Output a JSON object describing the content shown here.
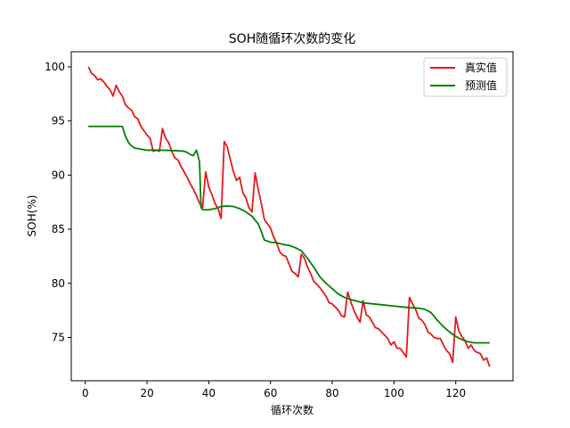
{
  "chart_data": {
    "type": "line",
    "title": "SOH随循环次数的变化",
    "xlabel": "循环次数",
    "ylabel": "SOH(%)",
    "xlim": [
      -4.55,
      138.55
    ],
    "ylim": [
      71.0,
      101.4
    ],
    "xticks": [
      0,
      20,
      40,
      60,
      80,
      100,
      120
    ],
    "yticks": [
      75,
      80,
      85,
      90,
      95,
      100
    ],
    "grid": false,
    "legend_position": "top-right",
    "series": [
      {
        "name": "真实值",
        "color": "#e41a1c",
        "points": [
          [
            1,
            100.0
          ],
          [
            2,
            99.4
          ],
          [
            3,
            99.2
          ],
          [
            4,
            98.8
          ],
          [
            5,
            98.9
          ],
          [
            6,
            98.6
          ],
          [
            7,
            98.2
          ],
          [
            8,
            97.9
          ],
          [
            9,
            97.3
          ],
          [
            10,
            98.3
          ],
          [
            11,
            97.7
          ],
          [
            12,
            97.3
          ],
          [
            13,
            96.5
          ],
          [
            14,
            96.2
          ],
          [
            15,
            96.0
          ],
          [
            16,
            95.4
          ],
          [
            17,
            95.2
          ],
          [
            18,
            94.5
          ],
          [
            19,
            94.1
          ],
          [
            20,
            93.7
          ],
          [
            21,
            93.4
          ],
          [
            22,
            92.2
          ],
          [
            23,
            92.3
          ],
          [
            24,
            92.2
          ],
          [
            25,
            94.3
          ],
          [
            26,
            93.4
          ],
          [
            27,
            93.0
          ],
          [
            28,
            92.2
          ],
          [
            29,
            91.6
          ],
          [
            30,
            91.4
          ],
          [
            31,
            90.8
          ],
          [
            32,
            90.3
          ],
          [
            33,
            89.8
          ],
          [
            34,
            89.2
          ],
          [
            35,
            88.7
          ],
          [
            36,
            88.1
          ],
          [
            37,
            87.4
          ],
          [
            38,
            87.0
          ],
          [
            39,
            90.3
          ],
          [
            40,
            88.9
          ],
          [
            41,
            88.2
          ],
          [
            42,
            87.4
          ],
          [
            43,
            86.9
          ],
          [
            44,
            86.0
          ],
          [
            45,
            93.1
          ],
          [
            46,
            92.6
          ],
          [
            47,
            91.4
          ],
          [
            48,
            90.3
          ],
          [
            49,
            89.5
          ],
          [
            50,
            89.8
          ],
          [
            51,
            88.4
          ],
          [
            52,
            87.9
          ],
          [
            53,
            87.0
          ],
          [
            54,
            86.6
          ],
          [
            55,
            90.2
          ],
          [
            56,
            88.7
          ],
          [
            57,
            87.4
          ],
          [
            58,
            85.9
          ],
          [
            59,
            85.5
          ],
          [
            60,
            85.1
          ],
          [
            61,
            84.3
          ],
          [
            62,
            83.7
          ],
          [
            63,
            82.9
          ],
          [
            64,
            82.6
          ],
          [
            65,
            82.5
          ],
          [
            66,
            81.8
          ],
          [
            67,
            81.1
          ],
          [
            68,
            80.9
          ],
          [
            69,
            80.6
          ],
          [
            70,
            82.7
          ],
          [
            71,
            82.3
          ],
          [
            72,
            81.5
          ],
          [
            73,
            80.9
          ],
          [
            74,
            80.2
          ],
          [
            75,
            79.9
          ],
          [
            76,
            79.6
          ],
          [
            77,
            79.2
          ],
          [
            78,
            78.8
          ],
          [
            79,
            78.2
          ],
          [
            80,
            78.1
          ],
          [
            81,
            77.8
          ],
          [
            82,
            77.5
          ],
          [
            83,
            77.0
          ],
          [
            84,
            76.9
          ],
          [
            85,
            79.2
          ],
          [
            86,
            78.3
          ],
          [
            87,
            77.5
          ],
          [
            88,
            76.9
          ],
          [
            89,
            76.4
          ],
          [
            90,
            78.4
          ],
          [
            91,
            77.1
          ],
          [
            92,
            76.9
          ],
          [
            93,
            76.4
          ],
          [
            94,
            75.9
          ],
          [
            95,
            75.8
          ],
          [
            96,
            75.5
          ],
          [
            97,
            75.2
          ],
          [
            98,
            74.9
          ],
          [
            99,
            74.3
          ],
          [
            100,
            74.6
          ],
          [
            101,
            74.0
          ],
          [
            102,
            74.0
          ],
          [
            103,
            73.6
          ],
          [
            104,
            73.2
          ],
          [
            105,
            78.7
          ],
          [
            106,
            78.1
          ],
          [
            107,
            77.6
          ],
          [
            108,
            76.8
          ],
          [
            109,
            76.6
          ],
          [
            110,
            76.2
          ],
          [
            111,
            75.5
          ],
          [
            112,
            75.3
          ],
          [
            113,
            75.0
          ],
          [
            114,
            74.9
          ],
          [
            115,
            74.9
          ],
          [
            116,
            74.3
          ],
          [
            117,
            73.8
          ],
          [
            118,
            73.5
          ],
          [
            119,
            72.7
          ],
          [
            120,
            76.9
          ],
          [
            121,
            75.6
          ],
          [
            122,
            75.1
          ],
          [
            123,
            74.7
          ],
          [
            124,
            74.0
          ],
          [
            125,
            74.3
          ],
          [
            126,
            73.8
          ],
          [
            127,
            73.6
          ],
          [
            128,
            73.5
          ],
          [
            129,
            72.9
          ],
          [
            130,
            73.1
          ],
          [
            131,
            72.3
          ]
        ]
      },
      {
        "name": "预测值",
        "color": "#008000",
        "points": [
          [
            1,
            94.5
          ],
          [
            5,
            94.5
          ],
          [
            10,
            94.5
          ],
          [
            12,
            94.5
          ],
          [
            13,
            93.6
          ],
          [
            14,
            93.0
          ],
          [
            15,
            92.7
          ],
          [
            16,
            92.5
          ],
          [
            18,
            92.4
          ],
          [
            20,
            92.3
          ],
          [
            25,
            92.3
          ],
          [
            30,
            92.25
          ],
          [
            32,
            92.2
          ],
          [
            33,
            92.1
          ],
          [
            34,
            91.9
          ],
          [
            35,
            91.8
          ],
          [
            36,
            92.3
          ],
          [
            36.5,
            91.8
          ],
          [
            37,
            91.2
          ],
          [
            37.5,
            87.0
          ],
          [
            38,
            86.8
          ],
          [
            40,
            86.8
          ],
          [
            42,
            86.9
          ],
          [
            44,
            87.1
          ],
          [
            46,
            87.15
          ],
          [
            48,
            87.1
          ],
          [
            50,
            86.9
          ],
          [
            52,
            86.6
          ],
          [
            54,
            86.2
          ],
          [
            56,
            85.5
          ],
          [
            57,
            84.8
          ],
          [
            58,
            84.0
          ],
          [
            60,
            83.8
          ],
          [
            62,
            83.75
          ],
          [
            64,
            83.6
          ],
          [
            66,
            83.5
          ],
          [
            68,
            83.3
          ],
          [
            70,
            83.0
          ],
          [
            72,
            82.3
          ],
          [
            74,
            81.5
          ],
          [
            76,
            80.6
          ],
          [
            78,
            80.0
          ],
          [
            80,
            79.5
          ],
          [
            82,
            79.0
          ],
          [
            84,
            78.7
          ],
          [
            86,
            78.5
          ],
          [
            88,
            78.35
          ],
          [
            90,
            78.2
          ],
          [
            95,
            78.05
          ],
          [
            100,
            77.9
          ],
          [
            105,
            77.75
          ],
          [
            108,
            77.7
          ],
          [
            110,
            77.6
          ],
          [
            112,
            77.3
          ],
          [
            114,
            76.6
          ],
          [
            116,
            76.0
          ],
          [
            118,
            75.5
          ],
          [
            120,
            75.1
          ],
          [
            122,
            74.8
          ],
          [
            124,
            74.6
          ],
          [
            126,
            74.5
          ],
          [
            128,
            74.5
          ],
          [
            131,
            74.5
          ]
        ]
      }
    ]
  }
}
